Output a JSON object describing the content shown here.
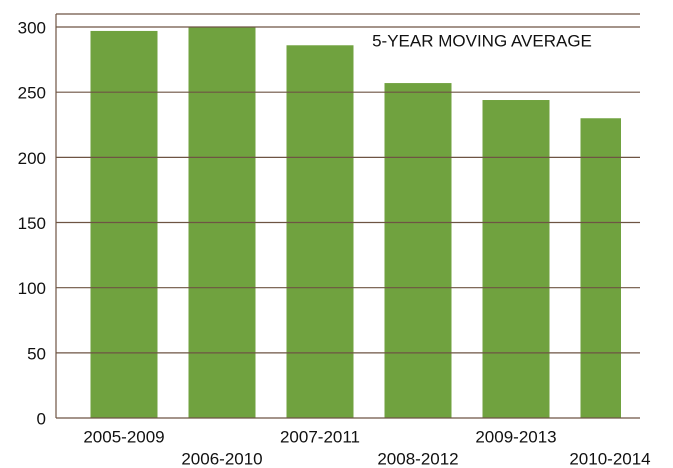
{
  "chart_data": {
    "type": "bar",
    "annotation": "5-YEAR MOVING AVERAGE",
    "categories": [
      "2005-2009",
      "2006-2010",
      "2007-2011",
      "2008-2012",
      "2009-2013",
      "2010-2014"
    ],
    "values": [
      297,
      300,
      286,
      257,
      244,
      230
    ],
    "color": "#70a23f",
    "ylim": [
      0,
      310
    ],
    "yticks": [
      0,
      50,
      100,
      150,
      200,
      250,
      300
    ],
    "grid": true
  }
}
